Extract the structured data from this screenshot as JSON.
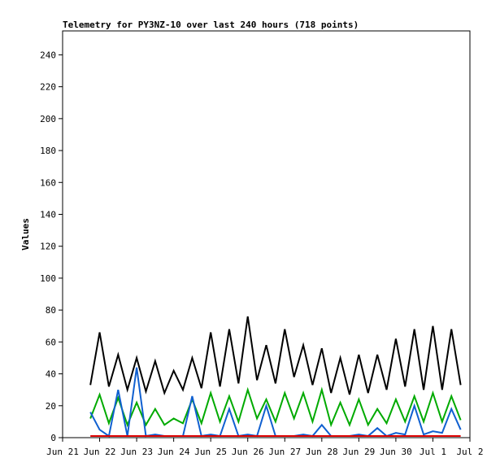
{
  "chart_data": {
    "type": "line",
    "title": "Telemetry for PY3NZ-10 over last 240 hours (718 points)",
    "y_label": "Values",
    "x": [
      0.75,
      1.0,
      1.25,
      1.5,
      1.75,
      2.0,
      2.25,
      2.5,
      2.75,
      3.0,
      3.25,
      3.5,
      3.75,
      4.0,
      4.25,
      4.5,
      4.75,
      5.0,
      5.25,
      5.5,
      5.75,
      6.0,
      6.25,
      6.5,
      6.75,
      7.0,
      7.25,
      7.5,
      7.75,
      8.0,
      8.25,
      8.5,
      8.75,
      9.0,
      9.25,
      9.5,
      9.75,
      10.0,
      10.25,
      10.5,
      10.75
    ],
    "series": [
      {
        "color": "#000000",
        "values": [
          33,
          66,
          32,
          52,
          30,
          50,
          29,
          48,
          28,
          42,
          30,
          50,
          31,
          66,
          32,
          68,
          34,
          76,
          36,
          58,
          34,
          68,
          38,
          58,
          33,
          56,
          28,
          50,
          27,
          52,
          28,
          52,
          30,
          62,
          32,
          68,
          30,
          70,
          30,
          68,
          33
        ]
      },
      {
        "color": "#00aa00",
        "values": [
          12,
          27,
          9,
          25,
          8,
          22,
          8,
          18,
          8,
          12,
          9,
          24,
          9,
          28,
          10,
          26,
          10,
          30,
          12,
          24,
          10,
          28,
          12,
          28,
          10,
          30,
          8,
          22,
          8,
          24,
          8,
          18,
          9,
          24,
          10,
          26,
          10,
          28,
          10,
          26,
          11
        ]
      },
      {
        "color": "#1060d0",
        "values": [
          16,
          5,
          1,
          30,
          1,
          44,
          1,
          2,
          1,
          1,
          1,
          26,
          1,
          2,
          1,
          18,
          1,
          2,
          1,
          20,
          1,
          1,
          1,
          2,
          1,
          8,
          1,
          1,
          1,
          2,
          1,
          6,
          1,
          3,
          2,
          20,
          2,
          4,
          3,
          18,
          5
        ]
      },
      {
        "color": "#dd0000",
        "values": [
          1,
          1,
          1,
          1,
          1,
          1,
          1,
          1,
          1,
          1,
          1,
          1,
          1,
          1,
          1,
          1,
          1,
          1,
          1,
          1,
          1,
          1,
          1,
          1,
          1,
          1,
          1,
          1,
          1,
          1,
          1,
          1,
          1,
          1,
          1,
          1,
          1,
          1,
          1,
          1,
          1
        ]
      }
    ],
    "xlim": [
      0,
      11
    ],
    "xticks": [
      {
        "value": 0,
        "label": "Jun 21"
      },
      {
        "value": 1,
        "label": "Jun 22"
      },
      {
        "value": 2,
        "label": "Jun 23"
      },
      {
        "value": 3,
        "label": "Jun 24"
      },
      {
        "value": 4,
        "label": "Jun 25"
      },
      {
        "value": 5,
        "label": "Jun 26"
      },
      {
        "value": 6,
        "label": "Jun 27"
      },
      {
        "value": 7,
        "label": "Jun 28"
      },
      {
        "value": 8,
        "label": "Jun 29"
      },
      {
        "value": 9,
        "label": "Jun 30"
      },
      {
        "value": 10,
        "label": "Jul 1"
      },
      {
        "value": 11,
        "label": "Jul 2"
      }
    ],
    "ylim": [
      0,
      255
    ],
    "yticks": [
      0,
      20,
      40,
      60,
      80,
      100,
      120,
      140,
      160,
      180,
      200,
      220,
      240
    ]
  }
}
